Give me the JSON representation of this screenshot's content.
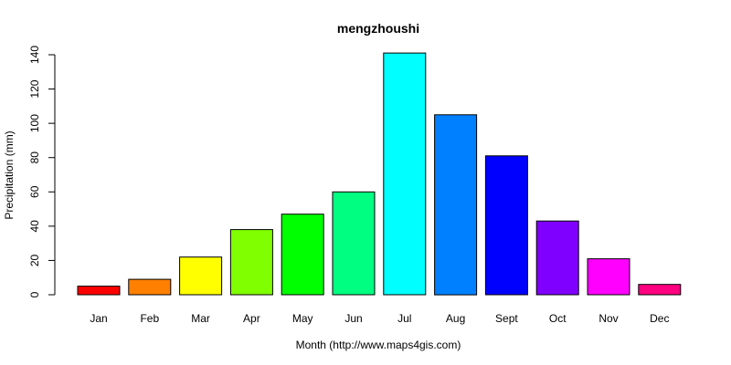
{
  "chart_data": {
    "type": "bar",
    "title": "mengzhoushi",
    "xlabel": "Month (http://www.maps4gis.com)",
    "ylabel": "Precipitation (mm)",
    "categories": [
      "Jan",
      "Feb",
      "Mar",
      "Apr",
      "May",
      "Jun",
      "Jul",
      "Aug",
      "Sept",
      "Oct",
      "Nov",
      "Dec"
    ],
    "values": [
      5,
      9,
      22,
      38,
      47,
      60,
      141,
      105,
      81,
      43,
      21,
      6
    ],
    "colors": [
      "#ff0000",
      "#ff8000",
      "#ffff00",
      "#80ff00",
      "#00ff00",
      "#00ff80",
      "#00ffff",
      "#0080ff",
      "#0000ff",
      "#8000ff",
      "#ff00ff",
      "#ff0080"
    ],
    "ylim": [
      0,
      140
    ],
    "yticks": [
      "0",
      "20",
      "40",
      "60",
      "80",
      "100",
      "120",
      "140"
    ],
    "grid": false,
    "legend": "none"
  }
}
